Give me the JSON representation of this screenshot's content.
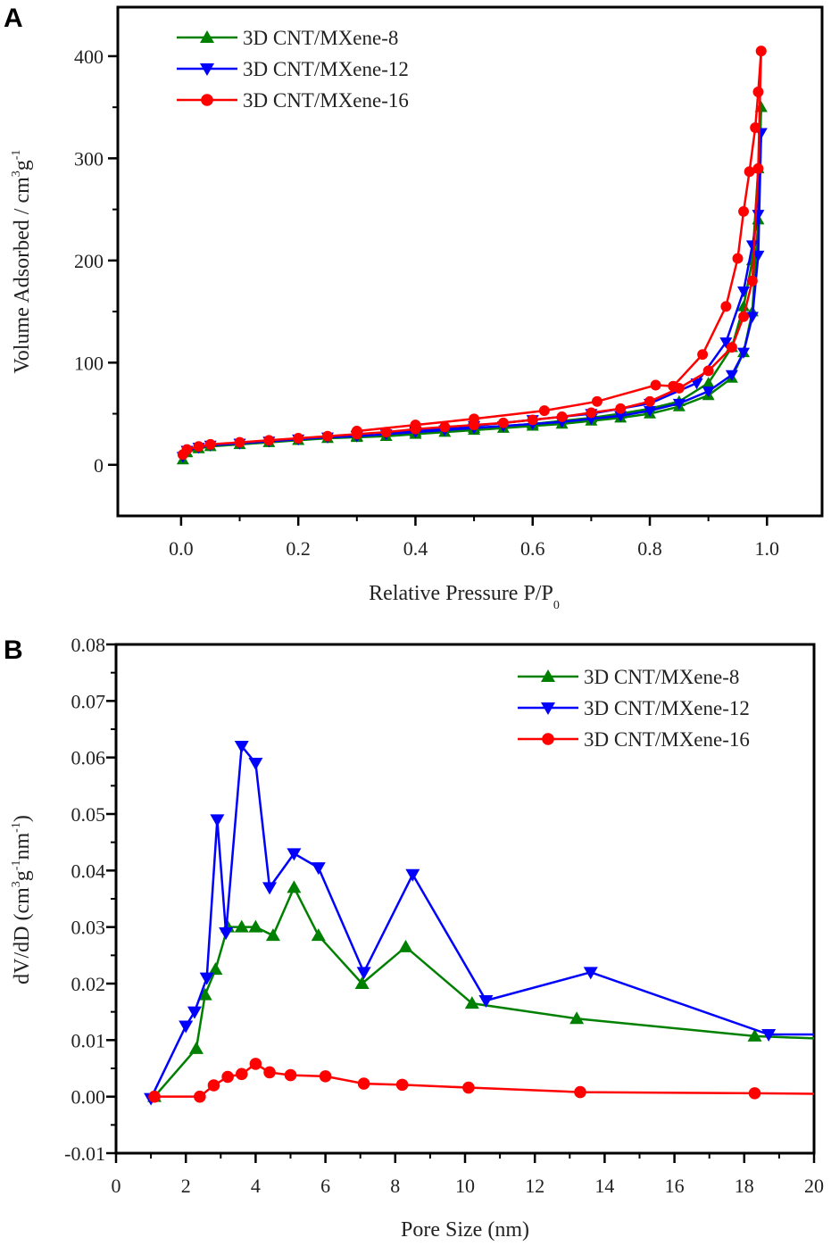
{
  "chart_data": [
    {
      "panel": "A",
      "type": "line",
      "xlabel": "Relative Pressure P/P",
      "xlabel_sub": "0",
      "ylabel_parts": [
        "Volume Adsorbed / cm",
        "3",
        "g",
        "-1"
      ],
      "xlim": [
        -0.108,
        1.094
      ],
      "ylim": [
        -50,
        448
      ],
      "xticks": [
        0.0,
        0.2,
        0.4,
        0.6,
        0.8,
        1.0
      ],
      "xtick_labels": [
        "0.0",
        "0.2",
        "0.4",
        "0.6",
        "0.8",
        "1.0"
      ],
      "yticks": [
        0,
        100,
        200,
        300,
        400
      ],
      "ytick_labels": [
        "0",
        "100",
        "200",
        "300",
        "400"
      ],
      "legend_position": "top-left",
      "series": [
        {
          "name": "3D CNT/MXene-8",
          "color": "#008000",
          "marker": "triangle-up",
          "adsorption": {
            "x": [
              0.003,
              0.01,
              0.03,
              0.05,
              0.1,
              0.15,
              0.2,
              0.25,
              0.3,
              0.35,
              0.4,
              0.45,
              0.5,
              0.55,
              0.6,
              0.65,
              0.7,
              0.75,
              0.8,
              0.85,
              0.9,
              0.94,
              0.96,
              0.975,
              0.985,
              0.99
            ],
            "y": [
              5,
              12,
              16,
              18,
              20,
              22,
              24,
              26,
              27,
              28,
              30,
              32,
              34,
              36,
              38,
              40,
              43,
              46,
              50,
              57,
              68,
              85,
              110,
              150,
              240,
              350
            ]
          },
          "desorption": {
            "x": [
              0.99,
              0.985,
              0.975,
              0.96,
              0.94,
              0.9,
              0.85,
              0.8,
              0.75,
              0.7,
              0.6,
              0.5,
              0.4,
              0.3
            ],
            "y": [
              350,
              290,
              200,
              155,
              115,
              80,
              62,
              55,
              50,
              46,
              40,
              36,
              32,
              28
            ]
          }
        },
        {
          "name": "3D CNT/MXene-12",
          "color": "#0000ff",
          "marker": "triangle-down",
          "adsorption": {
            "x": [
              0.003,
              0.01,
              0.03,
              0.05,
              0.1,
              0.15,
              0.2,
              0.25,
              0.3,
              0.35,
              0.4,
              0.45,
              0.5,
              0.55,
              0.6,
              0.65,
              0.7,
              0.75,
              0.8,
              0.85,
              0.9,
              0.94,
              0.96,
              0.975,
              0.985,
              0.99
            ],
            "y": [
              8,
              14,
              17,
              19,
              21,
              23,
              25,
              27,
              28,
              30,
              32,
              34,
              36,
              38,
              40,
              42,
              45,
              48,
              53,
              60,
              72,
              88,
              110,
              145,
              205,
              325
            ]
          },
          "desorption": {
            "x": [
              0.99,
              0.985,
              0.975,
              0.96,
              0.93,
              0.88,
              0.8,
              0.7,
              0.6,
              0.5,
              0.4,
              0.3
            ],
            "y": [
              325,
              245,
              215,
              170,
              120,
              80,
              60,
              50,
              44,
              38,
              33,
              29
            ]
          }
        },
        {
          "name": "3D CNT/MXene-16",
          "color": "#ff0000",
          "marker": "circle",
          "adsorption": {
            "x": [
              0.003,
              0.01,
              0.03,
              0.05,
              0.1,
              0.15,
              0.2,
              0.25,
              0.3,
              0.35,
              0.4,
              0.45,
              0.5,
              0.55,
              0.6,
              0.65,
              0.7,
              0.75,
              0.8,
              0.85,
              0.9,
              0.94,
              0.96,
              0.975,
              0.985,
              0.99
            ],
            "y": [
              10,
              15,
              18,
              20,
              22,
              24,
              26,
              28,
              30,
              32,
              35,
              37,
              39,
              41,
              44,
              47,
              51,
              55,
              62,
              75,
              92,
              115,
              145,
              180,
              290,
              405
            ]
          },
          "desorption": {
            "x": [
              0.99,
              0.985,
              0.98,
              0.97,
              0.96,
              0.95,
              0.93,
              0.89,
              0.84,
              0.81,
              0.71,
              0.62,
              0.5,
              0.4,
              0.3
            ],
            "y": [
              405,
              365,
              330,
              287,
              248,
              202,
              155,
              108,
              77,
              78,
              62,
              53,
              45,
              39,
              33
            ]
          }
        }
      ]
    },
    {
      "panel": "B",
      "type": "line",
      "xlabel": "Pore Size (nm)",
      "ylabel_parts": [
        "dV/dD (cm",
        "3",
        "g",
        "-1",
        "nm",
        "-1",
        ")"
      ],
      "xlim": [
        0,
        20
      ],
      "ylim": [
        -0.01,
        0.08
      ],
      "xticks": [
        0,
        2,
        4,
        6,
        8,
        10,
        12,
        14,
        16,
        18,
        20
      ],
      "xtick_labels": [
        "0",
        "2",
        "4",
        "6",
        "8",
        "10",
        "12",
        "14",
        "16",
        "18",
        "20"
      ],
      "yticks": [
        -0.01,
        0,
        0.01,
        0.02,
        0.03,
        0.04,
        0.05,
        0.06,
        0.07,
        0.08
      ],
      "ytick_labels": [
        "-0.01",
        "0.00",
        "0.01",
        "0.02",
        "0.03",
        "0.04",
        "0.05",
        "0.06",
        "0.07",
        "0.08"
      ],
      "legend_position": "top-right",
      "series": [
        {
          "name": "3D CNT/MXene-8",
          "color": "#008000",
          "marker": "triangle-up",
          "x": [
            1.1,
            2.3,
            2.55,
            2.85,
            3.2,
            3.6,
            4.0,
            4.5,
            5.1,
            5.8,
            7.05,
            8.3,
            10.2,
            13.2,
            18.3,
            20
          ],
          "y": [
            0,
            0.0085,
            0.018,
            0.0225,
            0.03,
            0.03,
            0.03,
            0.0285,
            0.037,
            0.0285,
            0.02,
            0.0265,
            0.0165,
            0.0138,
            0.0107,
            0.0103
          ]
        },
        {
          "name": "3D CNT/MXene-12",
          "color": "#0000ff",
          "marker": "triangle-down",
          "x": [
            1.0,
            2.0,
            2.25,
            2.6,
            2.9,
            3.15,
            3.6,
            4.0,
            4.4,
            5.1,
            5.8,
            7.1,
            8.5,
            10.6,
            13.6,
            18.7,
            20
          ],
          "y": [
            -0.0003,
            0.0125,
            0.015,
            0.021,
            0.049,
            0.029,
            0.062,
            0.059,
            0.037,
            0.043,
            0.0405,
            0.022,
            0.0393,
            0.017,
            0.022,
            0.011,
            0.011
          ]
        },
        {
          "name": "3D CNT/MXene-16",
          "color": "#ff0000",
          "marker": "circle",
          "x": [
            1.1,
            2.4,
            2.8,
            3.2,
            3.6,
            4.0,
            4.4,
            5.0,
            6.0,
            7.1,
            8.2,
            10.1,
            13.3,
            18.3,
            20
          ],
          "y": [
            0,
            0,
            0.002,
            0.0035,
            0.004,
            0.0058,
            0.0043,
            0.0038,
            0.0036,
            0.0023,
            0.0021,
            0.0016,
            0.0008,
            0.0006,
            0.0005
          ]
        }
      ]
    }
  ],
  "panel_labels": [
    "A",
    "B"
  ]
}
